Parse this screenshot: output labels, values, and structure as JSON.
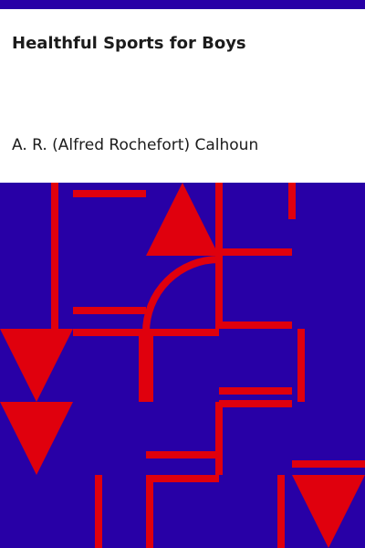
{
  "book": {
    "title": "Healthful Sports for Boys",
    "author": "A. R. (Alfred Rochefort) Calhoun"
  },
  "colors": {
    "background": "#ffffff",
    "art_background": "#2800a6",
    "art_lines": "#e0000d",
    "text": "#1c1c1c"
  }
}
